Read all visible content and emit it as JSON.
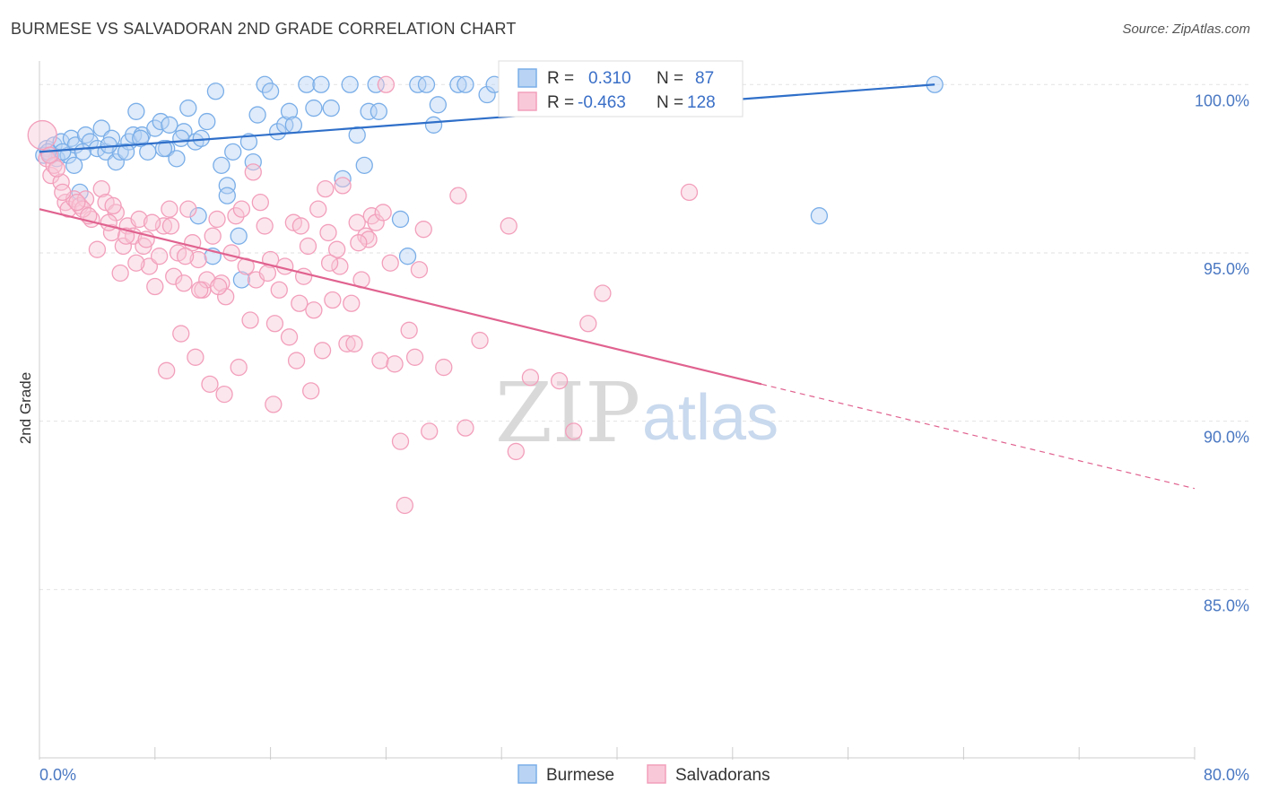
{
  "chart_data": {
    "type": "scatter",
    "title": "BURMESE VS SALVADORAN 2ND GRADE CORRELATION CHART",
    "source": "Source: ZipAtlas.com",
    "ylabel": "2nd Grade",
    "xlabel": "",
    "xlim": [
      0,
      80
    ],
    "ylim": [
      80,
      100.7
    ],
    "x_tick_labels": [
      "0.0%",
      "80.0%"
    ],
    "y_ticks": [
      {
        "value": 100,
        "label": "100.0%"
      },
      {
        "value": 95,
        "label": "95.0%"
      },
      {
        "value": 90,
        "label": "90.0%"
      },
      {
        "value": 85,
        "label": "85.0%"
      }
    ],
    "watermark": {
      "zip": "ZIP",
      "atlas": "atlas"
    },
    "legend_box": [
      {
        "r_label": "R =",
        "r_value": "0.310",
        "n_label": "N =",
        "n_value": "87"
      },
      {
        "r_label": "R =",
        "r_value": "-0.463",
        "n_label": "N =",
        "n_value": "128"
      }
    ],
    "series": [
      {
        "name": "Burmese",
        "color": "#7aaee8",
        "fill": "#b8d3f3",
        "line_color": "#2f6fc9",
        "trend": {
          "x0": 0,
          "y0": 98.0,
          "x1": 62,
          "y1": 100.0
        },
        "points": [
          [
            0.5,
            98.1
          ],
          [
            0.8,
            97.9
          ],
          [
            1.0,
            98.2
          ],
          [
            1.2,
            97.8
          ],
          [
            1.5,
            98.3
          ],
          [
            2.0,
            97.9
          ],
          [
            2.2,
            98.4
          ],
          [
            2.5,
            98.2
          ],
          [
            2.8,
            96.8
          ],
          [
            3.2,
            98.5
          ],
          [
            3.5,
            98.3
          ],
          [
            4.0,
            98.1
          ],
          [
            4.3,
            98.7
          ],
          [
            4.6,
            98.0
          ],
          [
            5.0,
            98.4
          ],
          [
            5.3,
            97.7
          ],
          [
            5.6,
            98.0
          ],
          [
            6.2,
            98.3
          ],
          [
            6.5,
            98.5
          ],
          [
            6.7,
            99.2
          ],
          [
            7.1,
            98.5
          ],
          [
            7.5,
            98.0
          ],
          [
            8.0,
            98.7
          ],
          [
            8.4,
            98.9
          ],
          [
            8.8,
            98.1
          ],
          [
            9.0,
            98.8
          ],
          [
            9.5,
            97.8
          ],
          [
            10.0,
            98.6
          ],
          [
            10.3,
            99.3
          ],
          [
            10.8,
            98.3
          ],
          [
            11.2,
            98.4
          ],
          [
            11.6,
            98.9
          ],
          [
            12.2,
            99.8
          ],
          [
            12.6,
            97.6
          ],
          [
            13.0,
            97.0
          ],
          [
            13.4,
            98.0
          ],
          [
            14.0,
            94.2
          ],
          [
            14.5,
            98.3
          ],
          [
            14.8,
            97.7
          ],
          [
            15.1,
            99.1
          ],
          [
            15.6,
            100.0
          ],
          [
            16.0,
            99.8
          ],
          [
            16.5,
            98.6
          ],
          [
            17.0,
            98.8
          ],
          [
            17.3,
            99.2
          ],
          [
            17.6,
            98.8
          ],
          [
            18.5,
            100.0
          ],
          [
            19.0,
            99.3
          ],
          [
            19.5,
            100.0
          ],
          [
            20.2,
            99.3
          ],
          [
            21.0,
            97.2
          ],
          [
            21.5,
            100.0
          ],
          [
            22.0,
            98.5
          ],
          [
            22.5,
            97.6
          ],
          [
            22.8,
            99.2
          ],
          [
            23.3,
            100.0
          ],
          [
            23.5,
            99.2
          ],
          [
            25.0,
            96.0
          ],
          [
            26.2,
            100.0
          ],
          [
            26.8,
            100.0
          ],
          [
            27.3,
            98.8
          ],
          [
            27.6,
            99.4
          ],
          [
            29.0,
            100.0
          ],
          [
            29.5,
            100.0
          ],
          [
            31.0,
            99.7
          ],
          [
            31.5,
            100.0
          ],
          [
            33.0,
            100.0
          ],
          [
            33.5,
            99.9
          ],
          [
            37.0,
            100.0
          ],
          [
            38.0,
            99.8
          ],
          [
            62.0,
            100.0
          ],
          [
            54.0,
            96.1
          ],
          [
            25.5,
            94.9
          ],
          [
            13.8,
            95.5
          ],
          [
            12.0,
            94.9
          ],
          [
            13.0,
            96.7
          ],
          [
            11.0,
            96.1
          ],
          [
            7.0,
            98.4
          ],
          [
            1.6,
            98.0
          ],
          [
            2.4,
            97.6
          ],
          [
            0.3,
            97.9
          ],
          [
            0.6,
            98.0
          ],
          [
            3.0,
            98.0
          ],
          [
            4.8,
            98.2
          ],
          [
            6.0,
            98.0
          ],
          [
            8.6,
            98.1
          ],
          [
            9.8,
            98.4
          ]
        ]
      },
      {
        "name": "Salvadorans",
        "color": "#f29fbb",
        "fill": "#f9c8d8",
        "line_color": "#e0628f",
        "trend": {
          "x0": 0,
          "y0": 96.3,
          "x1": 50,
          "y1": 91.1,
          "dash_x1": 80,
          "dash_y1": 88.0
        },
        "points": [
          [
            0.2,
            98.5
          ],
          [
            0.5,
            97.8
          ],
          [
            0.8,
            97.3
          ],
          [
            1.0,
            97.6
          ],
          [
            1.5,
            97.1
          ],
          [
            1.8,
            96.5
          ],
          [
            2.0,
            96.3
          ],
          [
            2.4,
            96.6
          ],
          [
            2.8,
            96.4
          ],
          [
            3.2,
            96.6
          ],
          [
            3.6,
            96.0
          ],
          [
            4.0,
            95.1
          ],
          [
            4.3,
            96.9
          ],
          [
            4.6,
            96.5
          ],
          [
            5.0,
            95.6
          ],
          [
            5.3,
            96.2
          ],
          [
            5.8,
            95.2
          ],
          [
            6.1,
            95.8
          ],
          [
            6.5,
            95.5
          ],
          [
            6.9,
            96.0
          ],
          [
            7.2,
            95.2
          ],
          [
            7.6,
            94.6
          ],
          [
            8.0,
            94.0
          ],
          [
            8.3,
            94.9
          ],
          [
            8.6,
            95.8
          ],
          [
            9.0,
            96.3
          ],
          [
            9.3,
            94.3
          ],
          [
            9.6,
            95.0
          ],
          [
            10.0,
            94.1
          ],
          [
            10.3,
            96.3
          ],
          [
            10.6,
            95.3
          ],
          [
            11.0,
            94.8
          ],
          [
            11.3,
            93.9
          ],
          [
            11.6,
            94.2
          ],
          [
            12.0,
            95.5
          ],
          [
            12.3,
            96.0
          ],
          [
            12.6,
            94.1
          ],
          [
            12.9,
            93.7
          ],
          [
            13.3,
            95.0
          ],
          [
            13.6,
            96.1
          ],
          [
            14.0,
            96.3
          ],
          [
            14.3,
            94.6
          ],
          [
            14.6,
            93.0
          ],
          [
            15.0,
            94.2
          ],
          [
            15.3,
            96.5
          ],
          [
            15.6,
            95.8
          ],
          [
            16.0,
            94.8
          ],
          [
            16.3,
            92.9
          ],
          [
            16.6,
            93.9
          ],
          [
            17.0,
            94.6
          ],
          [
            17.3,
            92.5
          ],
          [
            17.6,
            95.9
          ],
          [
            18.0,
            93.5
          ],
          [
            18.3,
            94.3
          ],
          [
            18.6,
            95.2
          ],
          [
            19.0,
            93.3
          ],
          [
            19.3,
            96.3
          ],
          [
            19.6,
            92.1
          ],
          [
            20.0,
            95.6
          ],
          [
            20.3,
            93.6
          ],
          [
            20.6,
            95.1
          ],
          [
            21.0,
            97.0
          ],
          [
            21.3,
            92.3
          ],
          [
            21.6,
            93.5
          ],
          [
            22.0,
            95.9
          ],
          [
            22.3,
            94.2
          ],
          [
            22.6,
            95.5
          ],
          [
            23.0,
            96.1
          ],
          [
            23.3,
            95.9
          ],
          [
            23.6,
            91.8
          ],
          [
            24.0,
            100.0
          ],
          [
            24.3,
            94.7
          ],
          [
            24.6,
            91.7
          ],
          [
            25.0,
            89.4
          ],
          [
            25.3,
            87.5
          ],
          [
            25.6,
            92.7
          ],
          [
            26.0,
            91.9
          ],
          [
            26.3,
            94.5
          ],
          [
            26.6,
            95.7
          ],
          [
            27.0,
            89.7
          ],
          [
            28.0,
            91.6
          ],
          [
            29.0,
            96.7
          ],
          [
            29.5,
            89.8
          ],
          [
            30.5,
            92.4
          ],
          [
            32.5,
            95.8
          ],
          [
            33.0,
            89.1
          ],
          [
            34.0,
            91.3
          ],
          [
            36.0,
            91.2
          ],
          [
            37.0,
            89.7
          ],
          [
            38.0,
            92.9
          ],
          [
            39.0,
            93.8
          ],
          [
            45.0,
            96.8
          ],
          [
            3.0,
            96.3
          ],
          [
            5.6,
            94.4
          ],
          [
            7.8,
            95.9
          ],
          [
            9.8,
            92.6
          ],
          [
            10.8,
            91.9
          ],
          [
            11.8,
            91.1
          ],
          [
            12.8,
            90.8
          ],
          [
            13.8,
            91.6
          ],
          [
            16.2,
            90.5
          ],
          [
            17.8,
            91.8
          ],
          [
            18.8,
            90.9
          ],
          [
            19.8,
            96.9
          ],
          [
            20.8,
            94.6
          ],
          [
            21.8,
            92.3
          ],
          [
            22.8,
            95.4
          ],
          [
            23.8,
            96.2
          ],
          [
            6.0,
            95.5
          ],
          [
            8.8,
            91.5
          ],
          [
            14.8,
            97.4
          ],
          [
            12.4,
            94.0
          ],
          [
            15.8,
            94.4
          ],
          [
            4.8,
            95.9
          ],
          [
            2.6,
            96.5
          ],
          [
            1.2,
            97.5
          ],
          [
            0.7,
            97.9
          ],
          [
            1.6,
            96.8
          ],
          [
            3.4,
            96.1
          ],
          [
            5.1,
            96.4
          ],
          [
            6.7,
            94.7
          ],
          [
            7.4,
            95.4
          ],
          [
            9.1,
            95.8
          ],
          [
            10.1,
            94.9
          ],
          [
            11.1,
            93.9
          ],
          [
            18.1,
            95.8
          ],
          [
            20.1,
            94.7
          ],
          [
            22.1,
            95.3
          ]
        ]
      }
    ]
  },
  "legend_bottom": [
    "Burmese",
    "Salvadorans"
  ]
}
